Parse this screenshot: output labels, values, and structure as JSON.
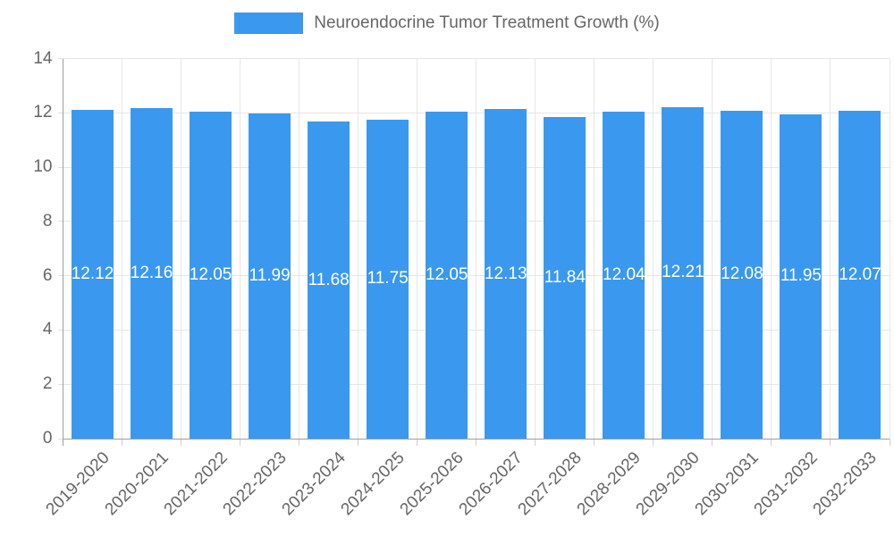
{
  "chart_data": {
    "type": "bar",
    "title": "Neuroendocrine Tumor Treatment Growth (%)",
    "categories": [
      "2019-2020",
      "2020-2021",
      "2021-2022",
      "2022-2023",
      "2023-2024",
      "2024-2025",
      "2025-2026",
      "2026-2027",
      "2027-2028",
      "2028-2029",
      "2029-2030",
      "2030-2031",
      "2031-2032",
      "2032-2033"
    ],
    "values": [
      12.12,
      12.16,
      12.05,
      11.99,
      11.68,
      11.75,
      12.05,
      12.13,
      11.84,
      12.04,
      12.21,
      12.08,
      11.95,
      12.07
    ],
    "value_labels": [
      "12.12",
      "12.16",
      "12.05",
      "11.99",
      "11.68",
      "11.75",
      "12.05",
      "12.13",
      "11.84",
      "12.04",
      "12.21",
      "12.08",
      "11.95",
      "12.07"
    ],
    "xlabel": "",
    "ylabel": "",
    "ylim": [
      0,
      14
    ],
    "yticks": [
      0,
      2,
      4,
      6,
      8,
      10,
      12,
      14
    ],
    "grid": true,
    "legend_position": "top",
    "bar_color": "#3a99ef",
    "grid_color": "#e6e6e6",
    "axis_color": "#9e9e9e",
    "tick_text_color": "#666666",
    "value_label_color": "#ffffff"
  }
}
